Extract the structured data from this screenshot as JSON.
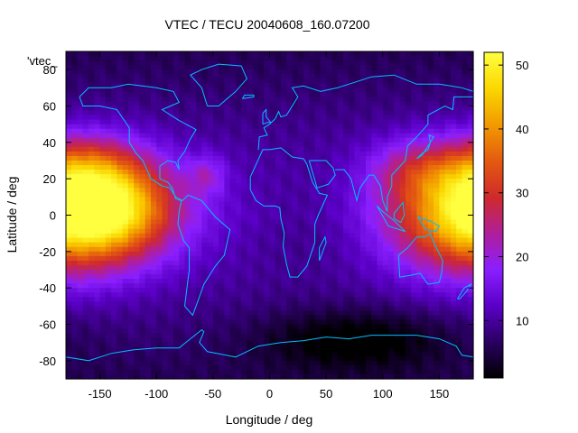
{
  "chart_data": {
    "type": "heatmap",
    "title": "VTEC / TECU 20040608_160.07200",
    "xlabel": "Longitude / deg",
    "ylabel": "Latitude / deg",
    "series_key_label": "'vtec_",
    "xlim": [
      -180,
      180
    ],
    "ylim": [
      -90,
      90
    ],
    "x_ticks": [
      -150,
      -100,
      -50,
      0,
      50,
      100,
      150
    ],
    "y_ticks": [
      -80,
      -60,
      -40,
      -20,
      0,
      20,
      40,
      60,
      80
    ],
    "y_tick_labels": [
      "-80",
      "-60",
      "-40",
      "-20",
      "0",
      "20",
      "40",
      "60",
      "80"
    ],
    "colorbar": {
      "range": [
        1,
        52
      ],
      "ticks": [
        10,
        20,
        30,
        40,
        50
      ],
      "palette": [
        "#000000",
        "#2a0062",
        "#5b00c8",
        "#8a1fff",
        "#b01f9a",
        "#cf2a2a",
        "#e45a10",
        "#f29a00",
        "#fbd700",
        "#ffff40"
      ]
    },
    "grid": false,
    "coastlines_color": "#00bfff",
    "field_features": [
      {
        "lon": -140,
        "lat": 5,
        "amplitude": 32,
        "sigma_lon": 40,
        "sigma_lat": 20
      },
      {
        "lon": -165,
        "lat": 28,
        "amplitude": 8,
        "sigma_lon": 30,
        "sigma_lat": 12
      },
      {
        "lon": 170,
        "lat": 0,
        "amplitude": 28,
        "sigma_lon": 45,
        "sigma_lat": 22
      },
      {
        "lon": 130,
        "lat": 25,
        "amplitude": 10,
        "sigma_lon": 30,
        "sigma_lat": 12
      },
      {
        "lon": -55,
        "lat": 22,
        "amplitude": 8,
        "sigma_lon": 12,
        "sigma_lat": 8
      },
      {
        "lon": 75,
        "lat": -68,
        "amplitude": -8,
        "sigma_lon": 60,
        "sigma_lat": 12
      },
      {
        "lon": 30,
        "lat": -5,
        "amplitude": -3,
        "sigma_lon": 40,
        "sigma_lat": 20
      }
    ],
    "base_level": 13
  }
}
